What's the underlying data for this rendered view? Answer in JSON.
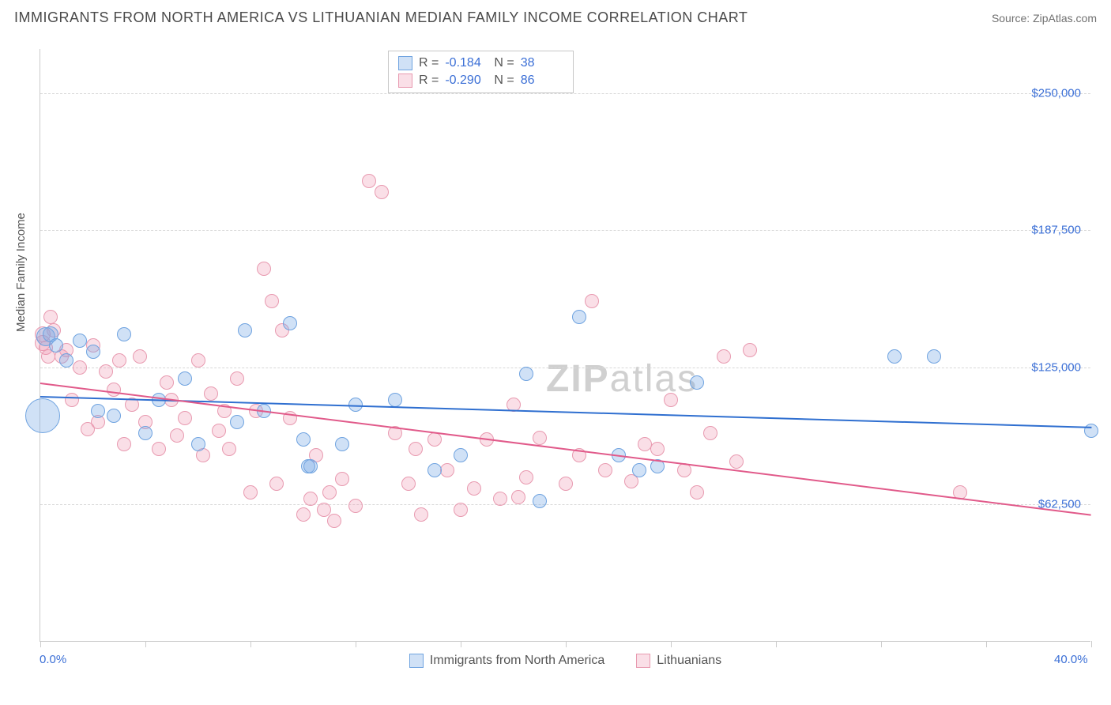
{
  "title": "IMMIGRANTS FROM NORTH AMERICA VS LITHUANIAN MEDIAN FAMILY INCOME CORRELATION CHART",
  "source": "Source: ZipAtlas.com",
  "watermark_a": "ZIP",
  "watermark_b": "atlas",
  "chart": {
    "type": "scatter",
    "xlim": [
      0,
      40
    ],
    "ylim": [
      0,
      270000
    ],
    "x_min_label": "0.0%",
    "x_max_label": "40.0%",
    "ylabel": "Median Family Income",
    "yticks": [
      {
        "v": 62500,
        "label": "$62,500"
      },
      {
        "v": 125000,
        "label": "$125,000"
      },
      {
        "v": 187500,
        "label": "$187,500"
      },
      {
        "v": 250000,
        "label": "$250,000"
      }
    ],
    "xticks": [
      0,
      4,
      8,
      12,
      16,
      20,
      24,
      28,
      32,
      36,
      40
    ],
    "grid_color": "#d8d8d8",
    "background_color": "#ffffff",
    "series": [
      {
        "name": "Immigrants from North America",
        "color_fill": "rgba(120,170,230,0.35)",
        "color_stroke": "#6fa3e0",
        "trend_color": "#2f6fd0",
        "R": "-0.184",
        "N": "38",
        "marker_r": 9,
        "trend": {
          "x1": 0,
          "y1": 112000,
          "x2": 40,
          "y2": 98000
        },
        "points": [
          [
            0.1,
            103000,
            22
          ],
          [
            0.2,
            139000,
            12
          ],
          [
            0.4,
            140000,
            10
          ],
          [
            0.6,
            135000,
            9
          ],
          [
            1.0,
            128000,
            9
          ],
          [
            1.5,
            137000,
            9
          ],
          [
            2.0,
            132000,
            9
          ],
          [
            2.2,
            105000,
            9
          ],
          [
            2.8,
            103000,
            9
          ],
          [
            3.2,
            140000,
            9
          ],
          [
            4.0,
            95000,
            9
          ],
          [
            4.5,
            110000,
            9
          ],
          [
            5.5,
            120000,
            9
          ],
          [
            6.0,
            90000,
            9
          ],
          [
            7.5,
            100000,
            9
          ],
          [
            7.8,
            142000,
            9
          ],
          [
            8.5,
            105000,
            9
          ],
          [
            9.5,
            145000,
            9
          ],
          [
            10.0,
            92000,
            9
          ],
          [
            10.2,
            80000,
            9
          ],
          [
            10.3,
            80000,
            9
          ],
          [
            11.5,
            90000,
            9
          ],
          [
            12.0,
            108000,
            9
          ],
          [
            13.5,
            110000,
            9
          ],
          [
            15.0,
            78000,
            9
          ],
          [
            16.0,
            85000,
            9
          ],
          [
            18.5,
            122000,
            9
          ],
          [
            19.0,
            64000,
            9
          ],
          [
            20.5,
            148000,
            9
          ],
          [
            22.0,
            85000,
            9
          ],
          [
            22.8,
            78000,
            9
          ],
          [
            23.5,
            80000,
            9
          ],
          [
            25.0,
            118000,
            9
          ],
          [
            32.5,
            130000,
            9
          ],
          [
            34.0,
            130000,
            9
          ],
          [
            40.0,
            96000,
            9
          ]
        ]
      },
      {
        "name": "Lithuanians",
        "color_fill": "rgba(240,150,175,0.30)",
        "color_stroke": "#e89ab0",
        "trend_color": "#e15a8a",
        "R": "-0.290",
        "N": "86",
        "marker_r": 9,
        "trend": {
          "x1": 0,
          "y1": 118000,
          "x2": 40,
          "y2": 58000
        },
        "points": [
          [
            0.1,
            140000,
            10
          ],
          [
            0.1,
            136000,
            10
          ],
          [
            0.2,
            134000,
            9
          ],
          [
            0.3,
            130000,
            9
          ],
          [
            0.4,
            148000,
            9
          ],
          [
            0.5,
            142000,
            9
          ],
          [
            0.8,
            130000,
            9
          ],
          [
            1.0,
            133000,
            9
          ],
          [
            1.2,
            110000,
            9
          ],
          [
            1.5,
            125000,
            9
          ],
          [
            1.8,
            97000,
            9
          ],
          [
            2.0,
            135000,
            9
          ],
          [
            2.2,
            100000,
            9
          ],
          [
            2.5,
            123000,
            9
          ],
          [
            2.8,
            115000,
            9
          ],
          [
            3.0,
            128000,
            9
          ],
          [
            3.2,
            90000,
            9
          ],
          [
            3.5,
            108000,
            9
          ],
          [
            3.8,
            130000,
            9
          ],
          [
            4.0,
            100000,
            9
          ],
          [
            4.5,
            88000,
            9
          ],
          [
            4.8,
            118000,
            9
          ],
          [
            5.0,
            110000,
            9
          ],
          [
            5.2,
            94000,
            9
          ],
          [
            5.5,
            102000,
            9
          ],
          [
            6.0,
            128000,
            9
          ],
          [
            6.2,
            85000,
            9
          ],
          [
            6.5,
            113000,
            9
          ],
          [
            6.8,
            96000,
            9
          ],
          [
            7.0,
            105000,
            9
          ],
          [
            7.2,
            88000,
            9
          ],
          [
            7.5,
            120000,
            9
          ],
          [
            8.0,
            68000,
            9
          ],
          [
            8.2,
            105000,
            9
          ],
          [
            8.5,
            170000,
            9
          ],
          [
            8.8,
            155000,
            9
          ],
          [
            9.0,
            72000,
            9
          ],
          [
            9.2,
            142000,
            9
          ],
          [
            9.5,
            102000,
            9
          ],
          [
            10.0,
            58000,
            9
          ],
          [
            10.3,
            65000,
            9
          ],
          [
            10.5,
            85000,
            9
          ],
          [
            10.8,
            60000,
            9
          ],
          [
            11.0,
            68000,
            9
          ],
          [
            11.2,
            55000,
            9
          ],
          [
            11.5,
            74000,
            9
          ],
          [
            12.0,
            62000,
            9
          ],
          [
            12.5,
            210000,
            9
          ],
          [
            13.0,
            205000,
            9
          ],
          [
            13.5,
            95000,
            9
          ],
          [
            14.0,
            72000,
            9
          ],
          [
            14.3,
            88000,
            9
          ],
          [
            14.5,
            58000,
            9
          ],
          [
            15.0,
            92000,
            9
          ],
          [
            15.5,
            78000,
            9
          ],
          [
            16.0,
            60000,
            9
          ],
          [
            16.5,
            70000,
            9
          ],
          [
            17.0,
            92000,
            9
          ],
          [
            17.5,
            65000,
            9
          ],
          [
            18.0,
            108000,
            9
          ],
          [
            18.2,
            66000,
            9
          ],
          [
            18.5,
            75000,
            9
          ],
          [
            19.0,
            93000,
            9
          ],
          [
            20.0,
            72000,
            9
          ],
          [
            20.5,
            85000,
            9
          ],
          [
            21.0,
            155000,
            9
          ],
          [
            21.5,
            78000,
            9
          ],
          [
            22.5,
            73000,
            9
          ],
          [
            23.0,
            90000,
            9
          ],
          [
            23.5,
            88000,
            9
          ],
          [
            24.0,
            110000,
            9
          ],
          [
            24.5,
            78000,
            9
          ],
          [
            25.0,
            68000,
            9
          ],
          [
            25.5,
            95000,
            9
          ],
          [
            26.0,
            130000,
            9
          ],
          [
            26.5,
            82000,
            9
          ],
          [
            27.0,
            133000,
            9
          ],
          [
            35.0,
            68000,
            9
          ]
        ]
      }
    ]
  }
}
